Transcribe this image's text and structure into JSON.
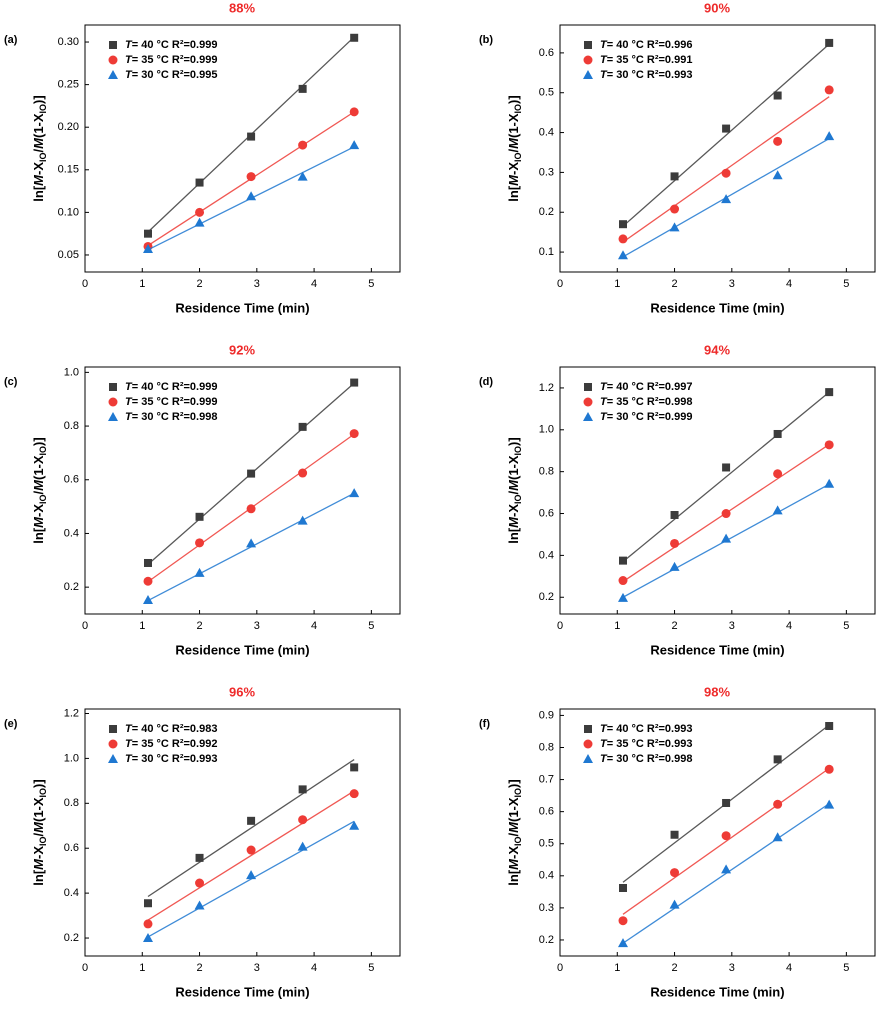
{
  "chart_data": [
    {
      "type": "scatter",
      "panel": "(a)",
      "title": "88%",
      "x_label": "Residence Time (min)",
      "y_label": [
        {
          "text": "ln["
        },
        {
          "text": "M",
          "italic": true
        },
        {
          "text": "-X"
        },
        {
          "text": "IO",
          "sub": true
        },
        {
          "text": "/"
        },
        {
          "text": "M",
          "italic": true
        },
        {
          "text": "(1-X"
        },
        {
          "text": "IO",
          "sub": true
        },
        {
          "text": ")]"
        }
      ],
      "x": [
        1.1,
        2,
        2.9,
        3.8,
        4.7
      ],
      "xlim": [
        0,
        5.5
      ],
      "xticks": [
        0,
        1,
        2,
        3,
        4,
        5
      ],
      "ylim": [
        0.03,
        0.32
      ],
      "yticks": [
        {
          "value": 0.05,
          "label": "0.05"
        },
        {
          "value": 0.1,
          "label": "0.10"
        },
        {
          "value": 0.15,
          "label": "0.15"
        },
        {
          "value": 0.2,
          "label": "0.20"
        },
        {
          "value": 0.25,
          "label": "0.25"
        },
        {
          "value": 0.3,
          "label": "0.30"
        }
      ],
      "fit_x": [
        1.1,
        4.7
      ],
      "series": [
        {
          "name": "T= 40 °C R²=0.999",
          "color": "#3c3c3c",
          "marker": "square",
          "values": [
            0.075,
            0.135,
            0.189,
            0.245,
            0.305
          ],
          "fit": [
            0.077,
            0.306
          ]
        },
        {
          "name": "T= 35 °C R²=0.999",
          "color": "#ee3b36",
          "marker": "circle",
          "values": [
            0.06,
            0.1,
            0.142,
            0.179,
            0.218
          ],
          "fit": [
            0.061,
            0.218
          ]
        },
        {
          "name": "T= 30 °C R²=0.995",
          "color": "#1f78d1",
          "marker": "triangle",
          "values": [
            0.057,
            0.088,
            0.119,
            0.142,
            0.179
          ],
          "fit": [
            0.056,
            0.177
          ]
        }
      ]
    },
    {
      "type": "scatter",
      "panel": "(b)",
      "title": "90%",
      "x_label": "Residence Time (min)",
      "y_label": [
        {
          "text": "ln["
        },
        {
          "text": "M",
          "italic": true
        },
        {
          "text": "-X"
        },
        {
          "text": "IO",
          "sub": true
        },
        {
          "text": "/"
        },
        {
          "text": "M",
          "italic": true
        },
        {
          "text": "(1-X"
        },
        {
          "text": "IO",
          "sub": true
        },
        {
          "text": ")]"
        }
      ],
      "x": [
        1.1,
        2,
        2.9,
        3.8,
        4.7
      ],
      "xlim": [
        0,
        5.5
      ],
      "xticks": [
        0,
        1,
        2,
        3,
        4,
        5
      ],
      "ylim": [
        0.05,
        0.67
      ],
      "yticks": [
        0.1,
        0.2,
        0.3,
        0.4,
        0.5,
        0.6
      ],
      "fit_x": [
        1.1,
        4.7
      ],
      "series": [
        {
          "name": "T= 40 °C R²=0.996",
          "color": "#3c3c3c",
          "marker": "square",
          "values": [
            0.17,
            0.29,
            0.41,
            0.493,
            0.625
          ],
          "fit": [
            0.165,
            0.622
          ]
        },
        {
          "name": "T= 35 °C R²=0.991",
          "color": "#ee3b36",
          "marker": "circle",
          "values": [
            0.133,
            0.208,
            0.298,
            0.378,
            0.507
          ],
          "fit": [
            0.125,
            0.49
          ]
        },
        {
          "name": "T= 30 °C R²=0.993",
          "color": "#1f78d1",
          "marker": "triangle",
          "values": [
            0.092,
            0.162,
            0.233,
            0.293,
            0.391
          ],
          "fit": [
            0.088,
            0.385
          ]
        }
      ]
    },
    {
      "type": "scatter",
      "panel": "(c)",
      "title": "92%",
      "x_label": "Residence Time (min)",
      "y_label": [
        {
          "text": "ln["
        },
        {
          "text": "M",
          "italic": true
        },
        {
          "text": "-X"
        },
        {
          "text": "IO",
          "sub": true
        },
        {
          "text": "/"
        },
        {
          "text": "M",
          "italic": true
        },
        {
          "text": "(1-X"
        },
        {
          "text": "IO",
          "sub": true
        },
        {
          "text": ")]"
        }
      ],
      "x": [
        1.1,
        2,
        2.9,
        3.8,
        4.7
      ],
      "xlim": [
        0,
        5.5
      ],
      "xticks": [
        0,
        1,
        2,
        3,
        4,
        5
      ],
      "ylim": [
        0.1,
        1.02
      ],
      "yticks": [
        0.2,
        0.4,
        0.6,
        0.8,
        {
          "value": 1,
          "label": "1.0"
        }
      ],
      "fit_x": [
        1.1,
        4.7
      ],
      "series": [
        {
          "name": "T= 40 °C R²=0.999",
          "color": "#3c3c3c",
          "marker": "square",
          "values": [
            0.29,
            0.462,
            0.623,
            0.797,
            0.962
          ],
          "fit": [
            0.285,
            0.96
          ]
        },
        {
          "name": "T= 35 °C R²=0.999",
          "color": "#ee3b36",
          "marker": "circle",
          "values": [
            0.222,
            0.365,
            0.492,
            0.625,
            0.772
          ],
          "fit": [
            0.22,
            0.77
          ]
        },
        {
          "name": "T= 30 °C R²=0.998",
          "color": "#1f78d1",
          "marker": "triangle",
          "values": [
            0.152,
            0.253,
            0.363,
            0.448,
            0.55
          ],
          "fit": [
            0.15,
            0.55
          ]
        }
      ]
    },
    {
      "type": "scatter",
      "panel": "(d)",
      "title": "94%",
      "x_label": "Residence Time (min)",
      "y_label": [
        {
          "text": "ln["
        },
        {
          "text": "M",
          "italic": true
        },
        {
          "text": "-X"
        },
        {
          "text": "IO",
          "sub": true
        },
        {
          "text": "/"
        },
        {
          "text": "M",
          "italic": true
        },
        {
          "text": "(1-X"
        },
        {
          "text": "IO",
          "sub": true
        },
        {
          "text": ")]"
        }
      ],
      "x": [
        1.1,
        2,
        2.9,
        3.8,
        4.7
      ],
      "xlim": [
        0,
        5.5
      ],
      "xticks": [
        0,
        1,
        2,
        3,
        4,
        5
      ],
      "ylim": [
        0.12,
        1.3
      ],
      "yticks": [
        0.2,
        0.4,
        0.6,
        0.8,
        {
          "value": 1,
          "label": "1.0"
        },
        1.2
      ],
      "fit_x": [
        1.1,
        4.7
      ],
      "series": [
        {
          "name": "T= 40 °C R²=0.997",
          "color": "#3c3c3c",
          "marker": "square",
          "values": [
            0.375,
            0.593,
            0.82,
            0.98,
            1.18
          ],
          "fit": [
            0.37,
            1.18
          ]
        },
        {
          "name": "T= 35 °C R²=0.998",
          "color": "#ee3b36",
          "marker": "circle",
          "values": [
            0.28,
            0.457,
            0.6,
            0.79,
            0.928
          ],
          "fit": [
            0.275,
            0.93
          ]
        },
        {
          "name": "T= 30 °C R²=0.999",
          "color": "#1f78d1",
          "marker": "triangle",
          "values": [
            0.197,
            0.345,
            0.48,
            0.615,
            0.742
          ],
          "fit": [
            0.2,
            0.74
          ]
        }
      ]
    },
    {
      "type": "scatter",
      "panel": "(e)",
      "title": "96%",
      "x_label": "Residence Time (min)",
      "y_label": [
        {
          "text": "ln["
        },
        {
          "text": "M",
          "italic": true
        },
        {
          "text": "-X"
        },
        {
          "text": "IO",
          "sub": true
        },
        {
          "text": "/"
        },
        {
          "text": "M",
          "italic": true
        },
        {
          "text": "(1-X"
        },
        {
          "text": "IO",
          "sub": true
        },
        {
          "text": ")]"
        }
      ],
      "x": [
        1.1,
        2,
        2.9,
        3.8,
        4.7
      ],
      "xlim": [
        0,
        5.5
      ],
      "xticks": [
        0,
        1,
        2,
        3,
        4,
        5
      ],
      "ylim": [
        0.12,
        1.22
      ],
      "yticks": [
        0.2,
        0.4,
        0.6,
        0.8,
        {
          "value": 1,
          "label": "1.0"
        },
        1.2
      ],
      "fit_x": [
        1.1,
        4.7
      ],
      "series": [
        {
          "name": "T= 40 °C R²=0.983",
          "color": "#3c3c3c",
          "marker": "square",
          "values": [
            0.355,
            0.557,
            0.722,
            0.862,
            0.96
          ],
          "fit": [
            0.385,
            0.995
          ]
        },
        {
          "name": "T= 35 °C R²=0.992",
          "color": "#ee3b36",
          "marker": "circle",
          "values": [
            0.263,
            0.445,
            0.592,
            0.727,
            0.843
          ],
          "fit": [
            0.28,
            0.855
          ]
        },
        {
          "name": "T= 30 °C R²=0.993",
          "color": "#1f78d1",
          "marker": "triangle",
          "values": [
            0.2,
            0.345,
            0.48,
            0.607,
            0.7
          ],
          "fit": [
            0.205,
            0.72
          ]
        }
      ]
    },
    {
      "type": "scatter",
      "panel": "(f)",
      "title": "98%",
      "x_label": "Residence Time (min)",
      "y_label": [
        {
          "text": "ln["
        },
        {
          "text": "M",
          "italic": true
        },
        {
          "text": "-X"
        },
        {
          "text": "IO",
          "sub": true
        },
        {
          "text": "/"
        },
        {
          "text": "M",
          "italic": true
        },
        {
          "text": "(1-X"
        },
        {
          "text": "IO",
          "sub": true
        },
        {
          "text": ")]"
        }
      ],
      "x": [
        1.1,
        2,
        2.9,
        3.8,
        4.7
      ],
      "xlim": [
        0,
        5.5
      ],
      "xticks": [
        0,
        1,
        2,
        3,
        4,
        5
      ],
      "ylim": [
        0.15,
        0.92
      ],
      "yticks": [
        0.2,
        0.3,
        0.4,
        0.5,
        0.6,
        0.7,
        0.8,
        0.9
      ],
      "fit_x": [
        1.1,
        4.7
      ],
      "series": [
        {
          "name": "T= 40 °C R²=0.993",
          "color": "#3c3c3c",
          "marker": "square",
          "values": [
            0.362,
            0.528,
            0.627,
            0.763,
            0.867
          ],
          "fit": [
            0.38,
            0.87
          ]
        },
        {
          "name": "T= 35 °C R²=0.993",
          "color": "#ee3b36",
          "marker": "circle",
          "values": [
            0.26,
            0.41,
            0.525,
            0.623,
            0.732
          ],
          "fit": [
            0.28,
            0.735
          ]
        },
        {
          "name": "T= 30 °C R²=0.998",
          "color": "#1f78d1",
          "marker": "triangle",
          "values": [
            0.19,
            0.31,
            0.42,
            0.52,
            0.622
          ],
          "fit": [
            0.19,
            0.625
          ]
        }
      ]
    }
  ]
}
